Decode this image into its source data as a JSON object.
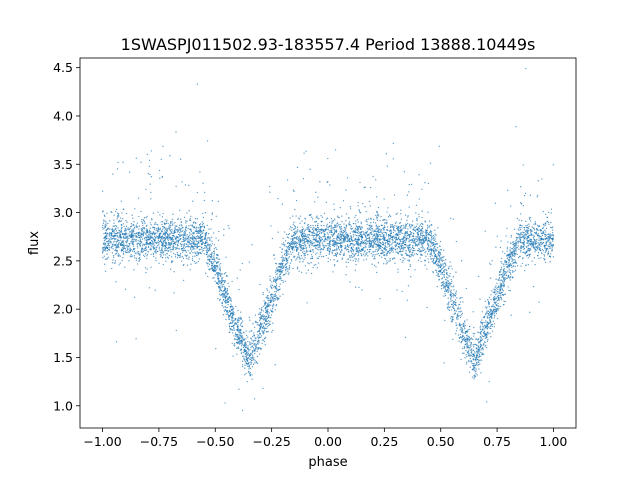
{
  "chart_data": {
    "type": "scatter",
    "title": "1SWASPJ011502.93-183557.4 Period 13888.10449s",
    "xlabel": "phase",
    "ylabel": "flux",
    "xlim": [
      -1.1,
      1.1
    ],
    "ylim": [
      0.77,
      4.6
    ],
    "x_ticks": [
      -1.0,
      -0.75,
      -0.5,
      -0.25,
      0.0,
      0.25,
      0.5,
      0.75,
      1.0
    ],
    "x_tick_labels": [
      "−1.00",
      "−0.75",
      "−0.50",
      "−0.25",
      "0.00",
      "0.25",
      "0.50",
      "0.75",
      "1.00"
    ],
    "y_ticks": [
      1.0,
      1.5,
      2.0,
      2.5,
      3.0,
      3.5,
      4.0,
      4.5
    ],
    "y_tick_labels": [
      "1.0",
      "1.5",
      "2.0",
      "2.5",
      "3.0",
      "3.5",
      "4.0",
      "4.5"
    ],
    "grid": false,
    "legend": "none",
    "series": [
      {
        "marker_color": "#1f77b4",
        "x": [
          -1.0,
          -0.9,
          -0.8,
          -0.7,
          -0.6,
          -0.55,
          -0.5,
          -0.45,
          -0.4,
          -0.35,
          -0.3,
          -0.25,
          -0.2,
          -0.15,
          -0.1,
          0.0,
          0.1,
          0.2,
          0.3,
          0.4,
          0.45,
          0.5,
          0.55,
          0.6,
          0.65,
          0.7,
          0.75,
          0.8,
          0.85,
          0.9,
          1.0
        ],
        "y": [
          2.72,
          2.73,
          2.71,
          2.72,
          2.73,
          2.72,
          2.45,
          2.08,
          1.75,
          1.48,
          1.8,
          2.12,
          2.46,
          2.71,
          2.72,
          2.73,
          2.72,
          2.72,
          2.71,
          2.72,
          2.72,
          2.45,
          2.08,
          1.75,
          1.48,
          1.8,
          2.12,
          2.46,
          2.71,
          2.72,
          2.72
        ]
      }
    ]
  }
}
